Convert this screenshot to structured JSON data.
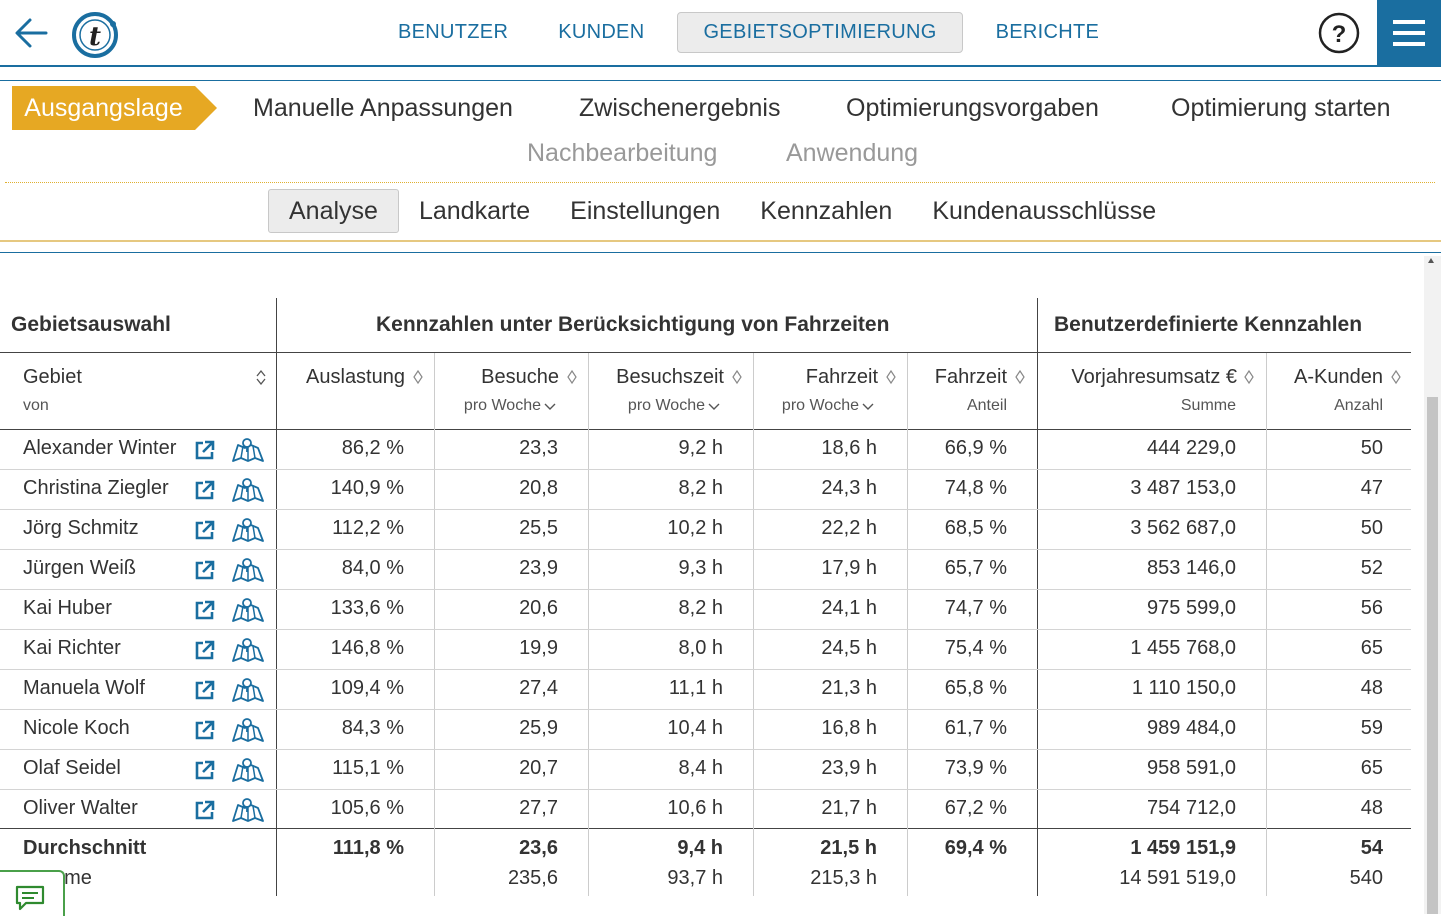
{
  "nav": {
    "items": [
      "BENUTZER",
      "KUNDEN",
      "GEBIETSOPTIMIERUNG",
      "BERICHTE"
    ],
    "active": "GEBIETSOPTIMIERUNG",
    "help_label": "?"
  },
  "steps": {
    "active": "Ausgangslage",
    "row1": [
      "Manuelle Anpassungen",
      "Zwischenergebnis",
      "Optimierungsvorgaben",
      "Optimierung starten"
    ],
    "row2_disabled": [
      "Nachbearbeitung",
      "Anwendung"
    ]
  },
  "subtabs": {
    "items": [
      "Analyse",
      "Landkarte",
      "Einstellungen",
      "Kennzahlen",
      "Kundenausschlüsse"
    ],
    "active": "Analyse"
  },
  "table": {
    "groups": {
      "area": "Gebietsauswahl",
      "travel": "Kennzahlen unter Berücksichtigung von Fahrzeiten",
      "custom": "Benutzerdefinierte Kennzahlen"
    },
    "columns": [
      {
        "label": "Gebiet",
        "sub": "von"
      },
      {
        "label": "Auslastung",
        "sub": ""
      },
      {
        "label": "Besuche",
        "sub": "pro Woche"
      },
      {
        "label": "Besuchszeit",
        "sub": "pro Woche"
      },
      {
        "label": "Fahrzeit",
        "sub": "pro Woche"
      },
      {
        "label": "Fahrzeit",
        "sub": "Anteil"
      },
      {
        "label": "Vorjahresumsatz €",
        "sub": "Summe"
      },
      {
        "label": "A-Kunden",
        "sub": "Anzahl"
      }
    ],
    "rows": [
      [
        "Alexander Winter",
        "86,2 %",
        "23,3",
        "9,2 h",
        "18,6 h",
        "66,9 %",
        "444 229,0",
        "50"
      ],
      [
        "Christina Ziegler",
        "140,9 %",
        "20,8",
        "8,2 h",
        "24,3 h",
        "74,8 %",
        "3 487 153,0",
        "47"
      ],
      [
        "Jörg Schmitz",
        "112,2 %",
        "25,5",
        "10,2 h",
        "22,2 h",
        "68,5 %",
        "3 562 687,0",
        "50"
      ],
      [
        "Jürgen Weiß",
        "84,0 %",
        "23,9",
        "9,3 h",
        "17,9 h",
        "65,7 %",
        "853 146,0",
        "52"
      ],
      [
        "Kai Huber",
        "133,6 %",
        "20,6",
        "8,2 h",
        "24,1 h",
        "74,7 %",
        "975 599,0",
        "56"
      ],
      [
        "Kai Richter",
        "146,8 %",
        "19,9",
        "8,0 h",
        "24,5 h",
        "75,4 %",
        "1 455 768,0",
        "65"
      ],
      [
        "Manuela Wolf",
        "109,4 %",
        "27,4",
        "11,1 h",
        "21,3 h",
        "65,8 %",
        "1 110 150,0",
        "48"
      ],
      [
        "Nicole Koch",
        "84,3 %",
        "25,9",
        "10,4 h",
        "16,8 h",
        "61,7 %",
        "989 484,0",
        "59"
      ],
      [
        "Olaf Seidel",
        "115,1 %",
        "20,7",
        "8,4 h",
        "23,9 h",
        "73,9 %",
        "958 591,0",
        "65"
      ],
      [
        "Oliver Walter",
        "105,6 %",
        "27,7",
        "10,6 h",
        "21,7 h",
        "67,2 %",
        "754 712,0",
        "48"
      ]
    ],
    "average": [
      "Durchschnitt",
      "111,8 %",
      "23,6",
      "9,4 h",
      "21,5 h",
      "69,4 %",
      "1 459 151,9",
      "54"
    ],
    "sum": [
      "Summe",
      "",
      "235,6",
      "93,7 h",
      "215,3 h",
      "",
      "14 591 519,0",
      "540"
    ]
  },
  "colors": {
    "accent": "#1a6ea0",
    "step_active": "#e6a823",
    "feedback": "#4aa04a"
  },
  "icons": [
    "back-arrow-icon",
    "logo-icon",
    "help-icon",
    "hamburger-menu-icon",
    "external-link-icon",
    "map-icon",
    "sort-icon",
    "chevron-down-icon",
    "chat-feedback-icon"
  ]
}
